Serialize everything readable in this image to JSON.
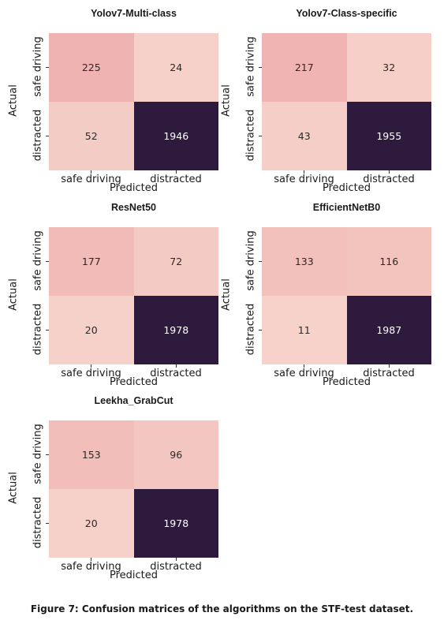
{
  "chart_data": [
    {
      "type": "heatmap",
      "title": "Yolov7-Multi-class",
      "xlabel": "Predicted",
      "ylabel": "Actual",
      "x_categories": [
        "safe driving",
        "distracted"
      ],
      "y_categories": [
        "safe driving",
        "distracted"
      ],
      "values": [
        [
          225,
          24
        ],
        [
          52,
          1946
        ]
      ]
    },
    {
      "type": "heatmap",
      "title": "Yolov7-Class-specific",
      "xlabel": "Predicted",
      "ylabel": "Actual",
      "x_categories": [
        "safe driving",
        "distracted"
      ],
      "y_categories": [
        "safe driving",
        "distracted"
      ],
      "values": [
        [
          217,
          32
        ],
        [
          43,
          1955
        ]
      ]
    },
    {
      "type": "heatmap",
      "title": "ResNet50",
      "xlabel": "Predicted",
      "ylabel": "Actual",
      "x_categories": [
        "safe driving",
        "distracted"
      ],
      "y_categories": [
        "safe driving",
        "distracted"
      ],
      "values": [
        [
          177,
          72
        ],
        [
          20,
          1978
        ]
      ]
    },
    {
      "type": "heatmap",
      "title": "EfficientNetB0",
      "xlabel": "Predicted",
      "ylabel": "Actual",
      "x_categories": [
        "safe driving",
        "distracted"
      ],
      "y_categories": [
        "safe driving",
        "distracted"
      ],
      "values": [
        [
          133,
          116
        ],
        [
          11,
          1987
        ]
      ]
    },
    {
      "type": "heatmap",
      "title": "Leekha_GrabCut",
      "xlabel": "Predicted",
      "ylabel": "Actual",
      "x_categories": [
        "safe driving",
        "distracted"
      ],
      "y_categories": [
        "safe driving",
        "distracted"
      ],
      "values": [
        [
          153,
          96
        ],
        [
          20,
          1978
        ]
      ]
    }
  ],
  "caption": "Figure 7: Confusion matrices of the algorithms on the STF-test dataset.",
  "colors": {
    "low": "#f6d4cc",
    "mid": "#efb2b0",
    "high": "#2d1a3c",
    "text_light": "#ffffff",
    "text_dark": "#2a2a2a"
  }
}
